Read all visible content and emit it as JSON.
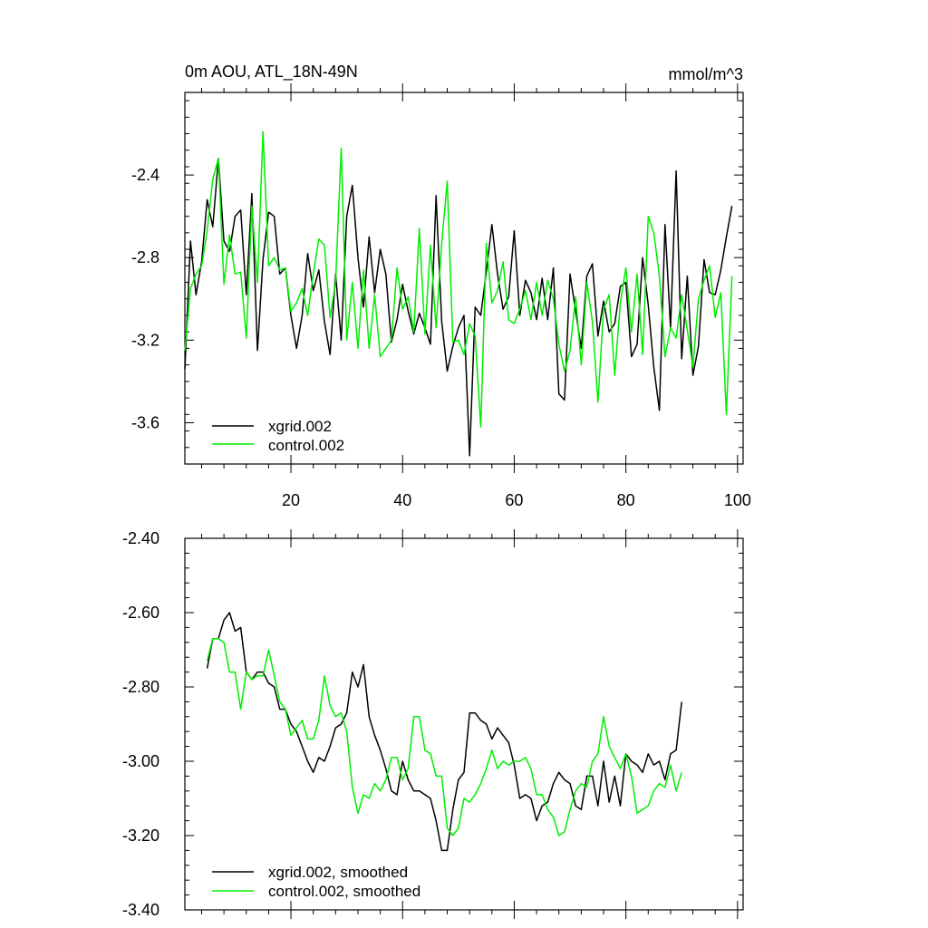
{
  "chart_data": [
    {
      "type": "line",
      "title": "0m AOU, ATL_18N-49N",
      "units": "mmol/m^3",
      "xlim": [
        1,
        101
      ],
      "ylim": [
        -3.8,
        -2.0
      ],
      "xticks": [
        20,
        40,
        60,
        80,
        100
      ],
      "xtick_labels": [
        "20",
        "40",
        "60",
        "80",
        "100"
      ],
      "yticks": [
        -3.6,
        -3.2,
        -2.8,
        -2.4
      ],
      "ytick_labels": [
        "-3.6",
        "-3.2",
        "-2.8",
        "-2.4"
      ],
      "legend_location": "bottom-left",
      "series": [
        {
          "name": "xgrid.002",
          "color": "#000000",
          "x_start": 1,
          "values": [
            -3.34,
            -2.72,
            -2.98,
            -2.82,
            -2.52,
            -2.65,
            -2.32,
            -2.72,
            -2.77,
            -2.6,
            -2.57,
            -2.98,
            -2.49,
            -3.25,
            -2.81,
            -2.58,
            -2.6,
            -2.88,
            -2.85,
            -3.08,
            -3.24,
            -3.08,
            -2.78,
            -2.96,
            -2.86,
            -3.11,
            -3.27,
            -2.88,
            -3.2,
            -2.6,
            -2.45,
            -2.8,
            -3.04,
            -2.7,
            -2.97,
            -2.76,
            -2.88,
            -3.21,
            -3.1,
            -2.93,
            -3.06,
            -3.17,
            -3.07,
            -3.14,
            -3.22,
            -2.5,
            -3.11,
            -3.35,
            -3.23,
            -3.14,
            -3.08,
            -3.76,
            -3.04,
            -3.08,
            -2.87,
            -2.64,
            -2.88,
            -3.05,
            -2.99,
            -2.67,
            -3.08,
            -2.91,
            -2.97,
            -3.1,
            -2.9,
            -3.1,
            -2.85,
            -3.46,
            -3.49,
            -2.88,
            -3.06,
            -3.24,
            -2.89,
            -2.83,
            -3.18,
            -3.01,
            -3.16,
            -3.12,
            -2.94,
            -2.92,
            -3.28,
            -3.22,
            -2.8,
            -3.03,
            -3.33,
            -3.54,
            -2.64,
            -3.14,
            -2.38,
            -3.29,
            -2.89,
            -3.37,
            -3.23,
            -2.81,
            -2.97,
            -2.98,
            -2.86,
            -2.7,
            -2.55
          ]
        },
        {
          "name": "control.002",
          "color": "#00ee00",
          "x_start": 1,
          "values": [
            -3.25,
            -2.95,
            -2.88,
            -2.84,
            -2.67,
            -2.42,
            -2.32,
            -2.93,
            -2.69,
            -2.88,
            -2.87,
            -3.19,
            -2.55,
            -2.92,
            -2.19,
            -2.84,
            -2.8,
            -2.86,
            -2.85,
            -3.06,
            -3.02,
            -2.95,
            -3.08,
            -2.88,
            -2.71,
            -2.74,
            -3.09,
            -2.92,
            -2.27,
            -3.2,
            -2.92,
            -3.24,
            -2.86,
            -3.24,
            -2.98,
            -3.28,
            -3.24,
            -3.2,
            -2.85,
            -3.05,
            -2.99,
            -3.16,
            -2.66,
            -3.17,
            -2.74,
            -3.14,
            -2.73,
            -2.43,
            -3.21,
            -3.2,
            -3.27,
            -3.12,
            -3.18,
            -3.62,
            -2.73,
            -3.02,
            -2.96,
            -2.82,
            -3.1,
            -3.12,
            -3.05,
            -2.96,
            -3.1,
            -2.92,
            -3.08,
            -2.91,
            -3.0,
            -3.22,
            -3.35,
            -3.25,
            -2.99,
            -3.32,
            -2.92,
            -3.11,
            -3.5,
            -3.05,
            -2.98,
            -3.37,
            -3.02,
            -2.85,
            -3.16,
            -2.88,
            -3.27,
            -2.6,
            -2.68,
            -2.89,
            -3.28,
            -3.14,
            -3.19,
            -2.98,
            -3.15,
            -3.33,
            -3.0,
            -2.91,
            -2.84,
            -3.09,
            -2.97,
            -3.56,
            -2.89
          ]
        }
      ]
    },
    {
      "type": "line",
      "xlim": [
        1,
        101
      ],
      "ylim": [
        -3.4,
        -2.4
      ],
      "xticks": [
        20,
        40,
        60,
        80,
        100
      ],
      "yticks": [
        -3.4,
        -3.2,
        -3.0,
        -2.8,
        -2.6,
        -2.4
      ],
      "ytick_labels": [
        "-3.40",
        "-3.20",
        "-3.00",
        "-2.80",
        "-2.60",
        "-2.40"
      ],
      "legend_location": "bottom-left",
      "series": [
        {
          "name": "xgrid.002, smoothed",
          "color": "#000000",
          "x_start": 5,
          "values": [
            -2.75,
            -2.67,
            -2.67,
            -2.62,
            -2.6,
            -2.65,
            -2.64,
            -2.76,
            -2.78,
            -2.76,
            -2.76,
            -2.79,
            -2.8,
            -2.86,
            -2.86,
            -2.9,
            -2.92,
            -2.96,
            -3.0,
            -3.03,
            -2.99,
            -3.0,
            -2.96,
            -2.91,
            -2.9,
            -2.87,
            -2.76,
            -2.8,
            -2.74,
            -2.88,
            -2.93,
            -2.97,
            -3.02,
            -3.08,
            -3.09,
            -3.0,
            -3.05,
            -3.08,
            -3.08,
            -3.09,
            -3.1,
            -3.16,
            -3.24,
            -3.24,
            -3.13,
            -3.05,
            -3.03,
            -2.87,
            -2.87,
            -2.89,
            -2.9,
            -2.94,
            -2.91,
            -2.93,
            -2.95,
            -3.01,
            -3.1,
            -3.09,
            -3.1,
            -3.16,
            -3.12,
            -3.11,
            -3.06,
            -3.03,
            -3.05,
            -3.06,
            -3.12,
            -3.13,
            -3.04,
            -3.04,
            -3.12,
            -3.0,
            -3.11,
            -3.04,
            -3.12,
            -2.98,
            -3.0,
            -3.01,
            -3.03,
            -2.98,
            -3.01,
            -3.0,
            -3.05,
            -2.98,
            -2.97,
            -2.84
          ]
        },
        {
          "name": "control.002, smoothed",
          "color": "#00ee00",
          "x_start": 5,
          "values": [
            -2.73,
            -2.67,
            -2.67,
            -2.68,
            -2.76,
            -2.76,
            -2.86,
            -2.76,
            -2.78,
            -2.77,
            -2.77,
            -2.7,
            -2.77,
            -2.84,
            -2.86,
            -2.93,
            -2.91,
            -2.89,
            -2.94,
            -2.94,
            -2.89,
            -2.77,
            -2.85,
            -2.88,
            -2.87,
            -2.92,
            -3.07,
            -3.14,
            -3.09,
            -3.1,
            -3.06,
            -3.08,
            -3.05,
            -2.99,
            -2.99,
            -3.05,
            -3.02,
            -2.88,
            -2.88,
            -2.97,
            -2.98,
            -3.04,
            -3.04,
            -3.18,
            -3.2,
            -3.18,
            -3.1,
            -3.11,
            -3.09,
            -3.06,
            -3.02,
            -2.97,
            -3.02,
            -3.0,
            -3.01,
            -3.0,
            -3.0,
            -2.99,
            -3.02,
            -3.09,
            -3.09,
            -3.13,
            -3.15,
            -3.2,
            -3.19,
            -3.13,
            -3.08,
            -3.06,
            -3.07,
            -3.0,
            -2.98,
            -2.88,
            -2.96,
            -2.99,
            -3.02,
            -2.98,
            -3.04,
            -3.14,
            -3.13,
            -3.12,
            -3.08,
            -3.06,
            -3.07,
            -3.01,
            -3.08,
            -3.03
          ]
        }
      ]
    }
  ]
}
